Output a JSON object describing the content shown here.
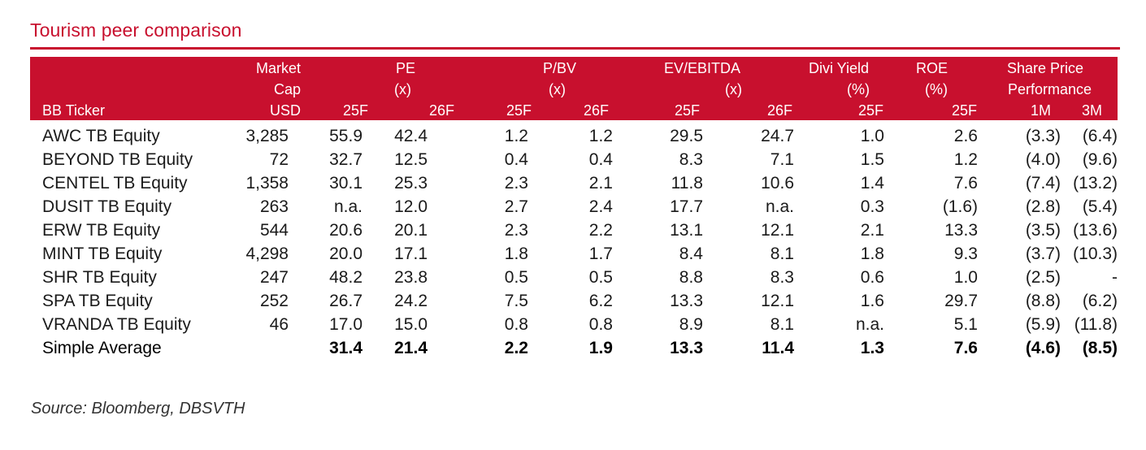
{
  "title": "Tourism peer comparison",
  "header": {
    "ticker": "BB Ticker",
    "mcap_1": "Market",
    "mcap_2": "Cap",
    "mcap_3": "USD",
    "pe_1": "PE",
    "pe_2": "(x)",
    "pbv_1": "P/BV",
    "pbv_2": "(x)",
    "ev_1": "EV/EBITDA",
    "ev_2": "(x)",
    "div_1": "Divi Yield",
    "div_2": "(%)",
    "roe_1": "ROE",
    "roe_2": "(%)",
    "sp_1": "Share Price",
    "sp_2": "Performance",
    "y25": "25F",
    "y26": "26F",
    "m1": "1M",
    "m3": "3M"
  },
  "rows": [
    [
      "AWC TB Equity",
      "3,285",
      "55.9",
      "42.4",
      "1.2",
      "1.2",
      "29.5",
      "24.7",
      "1.0",
      "2.6",
      "(3.3)",
      "(6.4)"
    ],
    [
      "BEYOND TB Equity",
      "72",
      "32.7",
      "12.5",
      "0.4",
      "0.4",
      "8.3",
      "7.1",
      "1.5",
      "1.2",
      "(4.0)",
      "(9.6)"
    ],
    [
      "CENTEL TB Equity",
      "1,358",
      "30.1",
      "25.3",
      "2.3",
      "2.1",
      "11.8",
      "10.6",
      "1.4",
      "7.6",
      "(7.4)",
      "(13.2)"
    ],
    [
      "DUSIT TB Equity",
      "263",
      "n.a.",
      "12.0",
      "2.7",
      "2.4",
      "17.7",
      "n.a.",
      "0.3",
      "(1.6)",
      "(2.8)",
      "(5.4)"
    ],
    [
      "ERW TB Equity",
      "544",
      "20.6",
      "20.1",
      "2.3",
      "2.2",
      "13.1",
      "12.1",
      "2.1",
      "13.3",
      "(3.5)",
      "(13.6)"
    ],
    [
      "MINT TB Equity",
      "4,298",
      "20.0",
      "17.1",
      "1.8",
      "1.7",
      "8.4",
      "8.1",
      "1.8",
      "9.3",
      "(3.7)",
      "(10.3)"
    ],
    [
      "SHR TB Equity",
      "247",
      "48.2",
      "23.8",
      "0.5",
      "0.5",
      "8.8",
      "8.3",
      "0.6",
      "1.0",
      "(2.5)",
      "-"
    ],
    [
      "SPA TB Equity",
      "252",
      "26.7",
      "24.2",
      "7.5",
      "6.2",
      "13.3",
      "12.1",
      "1.6",
      "29.7",
      "(8.8)",
      "(6.2)"
    ],
    [
      "VRANDA TB Equity",
      "46",
      "17.0",
      "15.0",
      "0.8",
      "0.8",
      "8.9",
      "8.1",
      "n.a.",
      "5.1",
      "(5.9)",
      "(11.8)"
    ]
  ],
  "average": [
    "Simple Average",
    "",
    "31.4",
    "21.4",
    "2.2",
    "1.9",
    "13.3",
    "11.4",
    "1.3",
    "7.6",
    "(4.6)",
    "(8.5)"
  ],
  "source": "Source: Bloomberg, DBSVTH",
  "colors": {
    "accent": "#c8102e"
  }
}
